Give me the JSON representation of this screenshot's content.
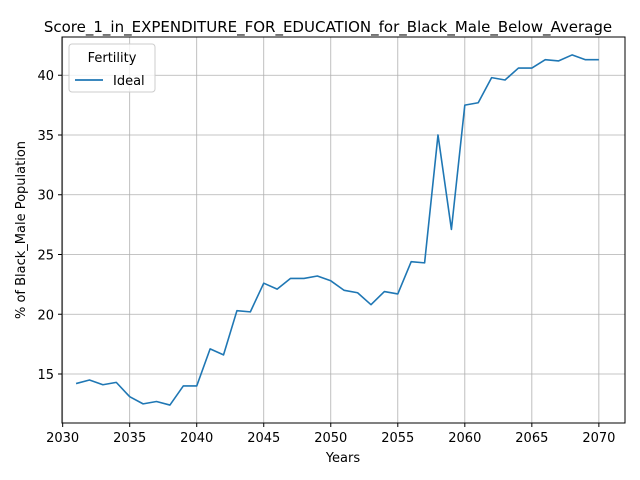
{
  "chart_data": {
    "type": "line",
    "title": "Score_1_in_EXPENDITURE_FOR_EDUCATION_for_Black_Male_Below_Average",
    "xlabel": "Years",
    "ylabel": "% of Black_Male Population",
    "xlim": [
      2029.95,
      2071.95
    ],
    "ylim": [
      10.9,
      43.2
    ],
    "xticks": [
      2030,
      2035,
      2040,
      2045,
      2050,
      2055,
      2060,
      2065,
      2070
    ],
    "yticks": [
      15,
      20,
      25,
      30,
      35,
      40
    ],
    "grid": true,
    "legend": {
      "title": "Fertility",
      "placement": "top-left"
    },
    "series": [
      {
        "name": "Ideal",
        "color": "#1f77b4",
        "x": [
          2031,
          2032,
          2033,
          2034,
          2035,
          2036,
          2037,
          2038,
          2039,
          2040,
          2041,
          2042,
          2043,
          2044,
          2045,
          2046,
          2047,
          2048,
          2049,
          2050,
          2051,
          2052,
          2053,
          2054,
          2055,
          2056,
          2057,
          2058,
          2059,
          2060,
          2061,
          2062,
          2063,
          2064,
          2065,
          2066,
          2067,
          2068,
          2069,
          2070
        ],
        "values": [
          14.2,
          14.5,
          14.1,
          14.3,
          13.1,
          12.5,
          12.7,
          12.4,
          14.0,
          14.0,
          17.1,
          16.6,
          20.3,
          20.2,
          22.6,
          22.1,
          23.0,
          23.0,
          23.2,
          22.8,
          22.0,
          21.8,
          20.8,
          21.9,
          21.7,
          24.4,
          24.3,
          35.0,
          27.1,
          37.5,
          37.7,
          39.8,
          39.6,
          40.6,
          40.6,
          41.3,
          41.2,
          41.7,
          41.3,
          41.3
        ]
      }
    ]
  }
}
